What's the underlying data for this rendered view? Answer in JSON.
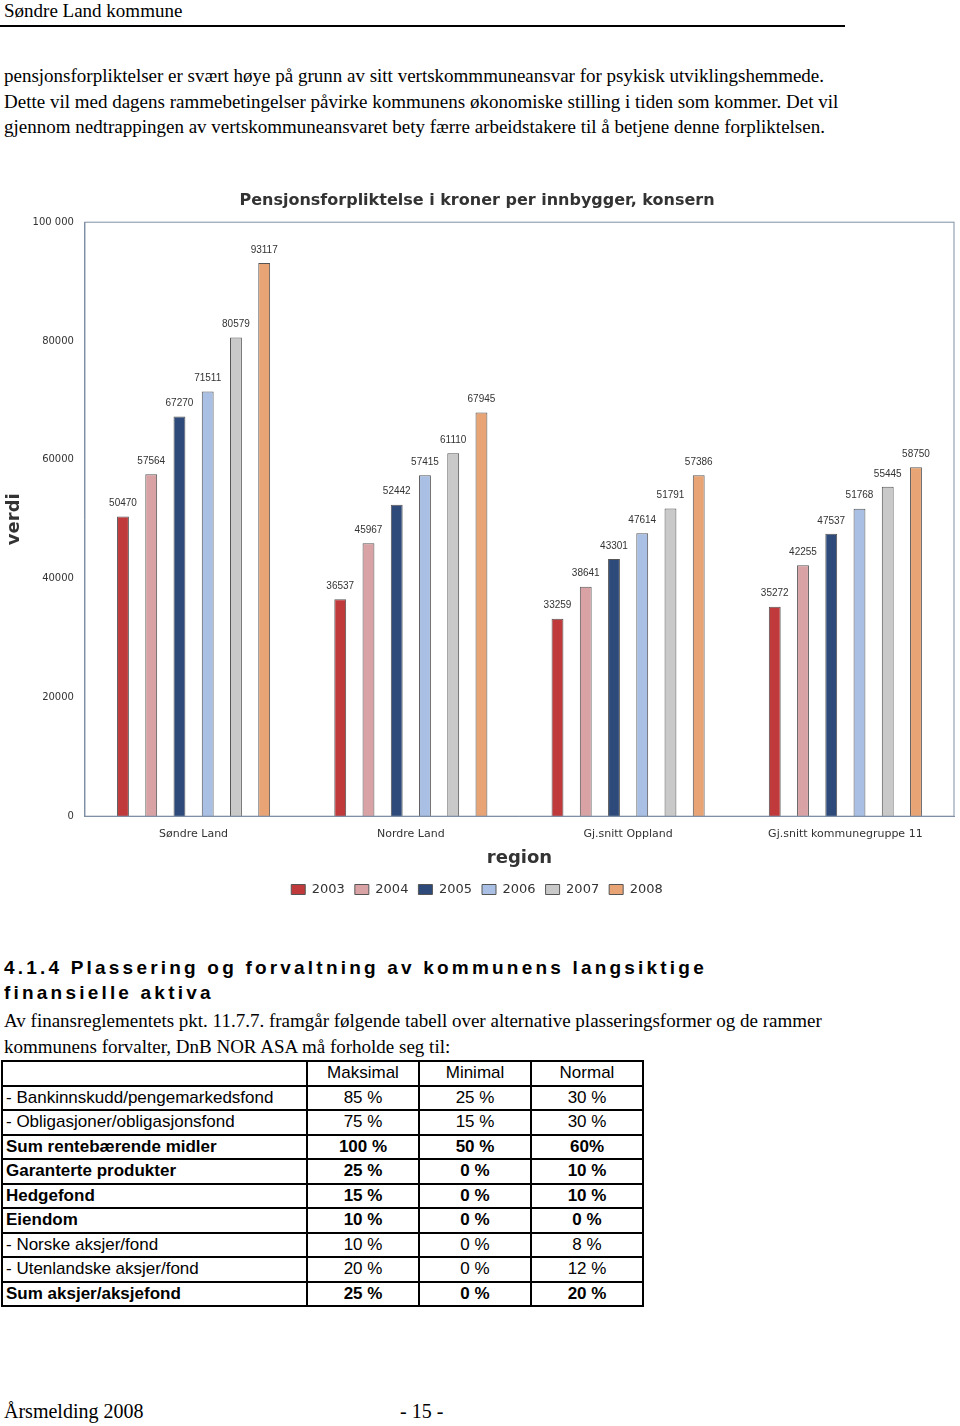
{
  "header": {
    "title": "Søndre Land kommune"
  },
  "paragraphs": [
    "pensjonsforpliktelser er svært høye på grunn av sitt vertskommmuneansvar for psykisk utviklingshemmede. Dette vil med dagens rammebetingelser påvirke kommunens økonomiske stilling i tiden som kommer. Det vil gjennom nedtrappingen av vertskommuneansvaret bety færre arbeidstakere til å betjene denne forpliktelsen."
  ],
  "chart_data": {
    "type": "bar",
    "title": "Pensjonsforpliktelse i kroner per innbygger, konsern",
    "x_label": "region",
    "y_label": "verdi",
    "categories": [
      "Søndre Land",
      "Nordre Land",
      "Gj.snitt Oppland",
      "Gj.snitt kommunegruppe 11"
    ],
    "series": [
      {
        "name": "2003",
        "color": "#c0393b",
        "values": [
          50470,
          36537,
          33259,
          35272
        ]
      },
      {
        "name": "2004",
        "color": "#d9a3a6",
        "values": [
          57564,
          45967,
          38641,
          42255
        ]
      },
      {
        "name": "2005",
        "color": "#2e4a7a",
        "values": [
          67270,
          52442,
          43301,
          47537
        ]
      },
      {
        "name": "2006",
        "color": "#a9bfe3",
        "values": [
          71511,
          57415,
          47614,
          51768
        ]
      },
      {
        "name": "2007",
        "color": "#c9c9c9",
        "values": [
          80579,
          61110,
          51791,
          55445
        ]
      },
      {
        "name": "2008",
        "color": "#e9a476",
        "values": [
          93117,
          67945,
          57386,
          58750
        ]
      }
    ],
    "ylim": [
      0,
      100000
    ],
    "yticks": [
      0,
      20000,
      40000,
      60000,
      80000,
      {
        "value": 100000,
        "label": "100 000"
      }
    ],
    "grid": false,
    "legend": "bottom",
    "data_labels": true
  },
  "section": {
    "title": "4.1.4 Plassering og forvaltning av kommunens langsiktige finansielle aktiva",
    "text": "Av finansreglementets pkt. 11.7.7. framgår følgende tabell over alternative plasseringsformer og de rammer kommunens forvalter, DnB NOR ASA må forholde seg til:"
  },
  "table": {
    "header": [
      "",
      "Maksimal",
      "Minimal",
      "Normal"
    ],
    "rows": [
      {
        "cells": [
          "- Bankinnskudd/pengemarkedsfond",
          "85 %",
          "25 %",
          "30 %"
        ],
        "bold": false
      },
      {
        "cells": [
          "- Obligasjoner/obligasjonsfond",
          "75 %",
          "15 %",
          "30 %"
        ],
        "bold": false
      },
      {
        "cells": [
          "Sum rentebærende midler",
          "100 %",
          "50 %",
          "60%"
        ],
        "bold": true
      },
      {
        "cells": [
          "Garanterte produkter",
          "25 %",
          "0 %",
          "10 %"
        ],
        "bold": true
      },
      {
        "cells": [
          "Hedgefond",
          "15 %",
          "0 %",
          "10 %"
        ],
        "bold": true
      },
      {
        "cells": [
          "Eiendom",
          "10 %",
          "0 %",
          "0 %"
        ],
        "bold": true
      },
      {
        "cells": [
          "- Norske aksjer/fond",
          "10 %",
          "0 %",
          "8 %"
        ],
        "bold": false
      },
      {
        "cells": [
          "- Utenlandske aksjer/fond",
          "20 %",
          "0 %",
          "12 %"
        ],
        "bold": false
      },
      {
        "cells": [
          "Sum aksjer/aksjefond",
          "25 %",
          "0 %",
          "20 %"
        ],
        "bold": true
      }
    ]
  },
  "footer": {
    "left": "Årsmelding 2008",
    "page": "- 15 -"
  }
}
